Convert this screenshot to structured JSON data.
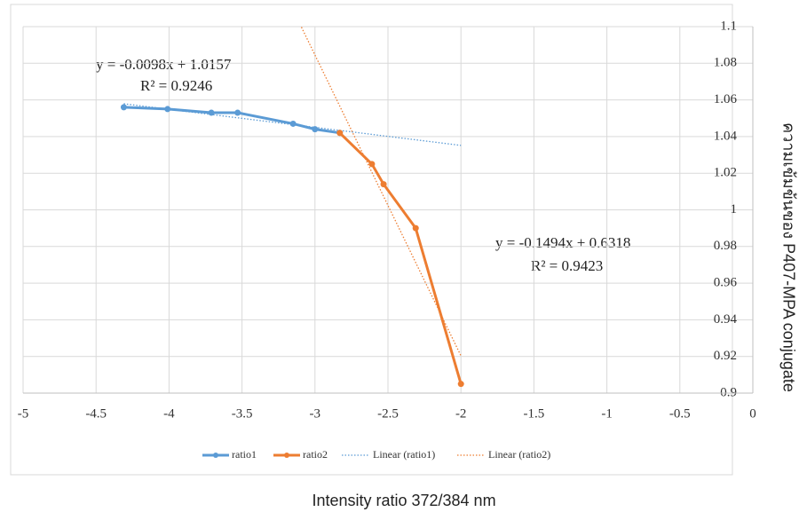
{
  "chart_data": {
    "type": "line",
    "x_axis_title": "Intensity ratio 372/384 nm",
    "y_axis_title": "ความเข้มข้นของ P407-MPA conjugate",
    "annotations": [
      "y = -0.0098x + 1.0157",
      "R² = 0.9246",
      "y = -0.1494x + 0.6318",
      "R² = 0.9423"
    ],
    "series": [
      {
        "name": "ratio1",
        "color": "#5b9bd5",
        "x": [
          -4.31,
          -4.01,
          -3.71,
          -3.53,
          -3.15,
          -3.0,
          -2.83
        ],
        "values": [
          1.056,
          1.055,
          1.053,
          1.053,
          1.047,
          1.044,
          1.042
        ]
      },
      {
        "name": "ratio2",
        "color": "#ed7d31",
        "x": [
          -2.83,
          -2.61,
          -2.53,
          -2.31,
          -2.0
        ],
        "values": [
          1.042,
          1.025,
          1.014,
          0.99,
          0.905
        ]
      }
    ],
    "trendlines": [
      {
        "name": "Linear (ratio1)",
        "color": "#5b9bd5"
      },
      {
        "name": "Linear (ratio2)",
        "color": "#ed7d31"
      }
    ],
    "xlim": [
      -5,
      0
    ],
    "xticks": [
      -5,
      -4.5,
      -4,
      -3.5,
      -3,
      -2.5,
      -2,
      -1.5,
      -1,
      -0.5,
      0
    ],
    "ylim": [
      0.9,
      1.1
    ],
    "yticks": [
      0.9,
      0.92,
      0.94,
      0.96,
      0.98,
      1,
      1.02,
      1.04,
      1.06,
      1.08,
      1.1
    ],
    "grid": true
  }
}
